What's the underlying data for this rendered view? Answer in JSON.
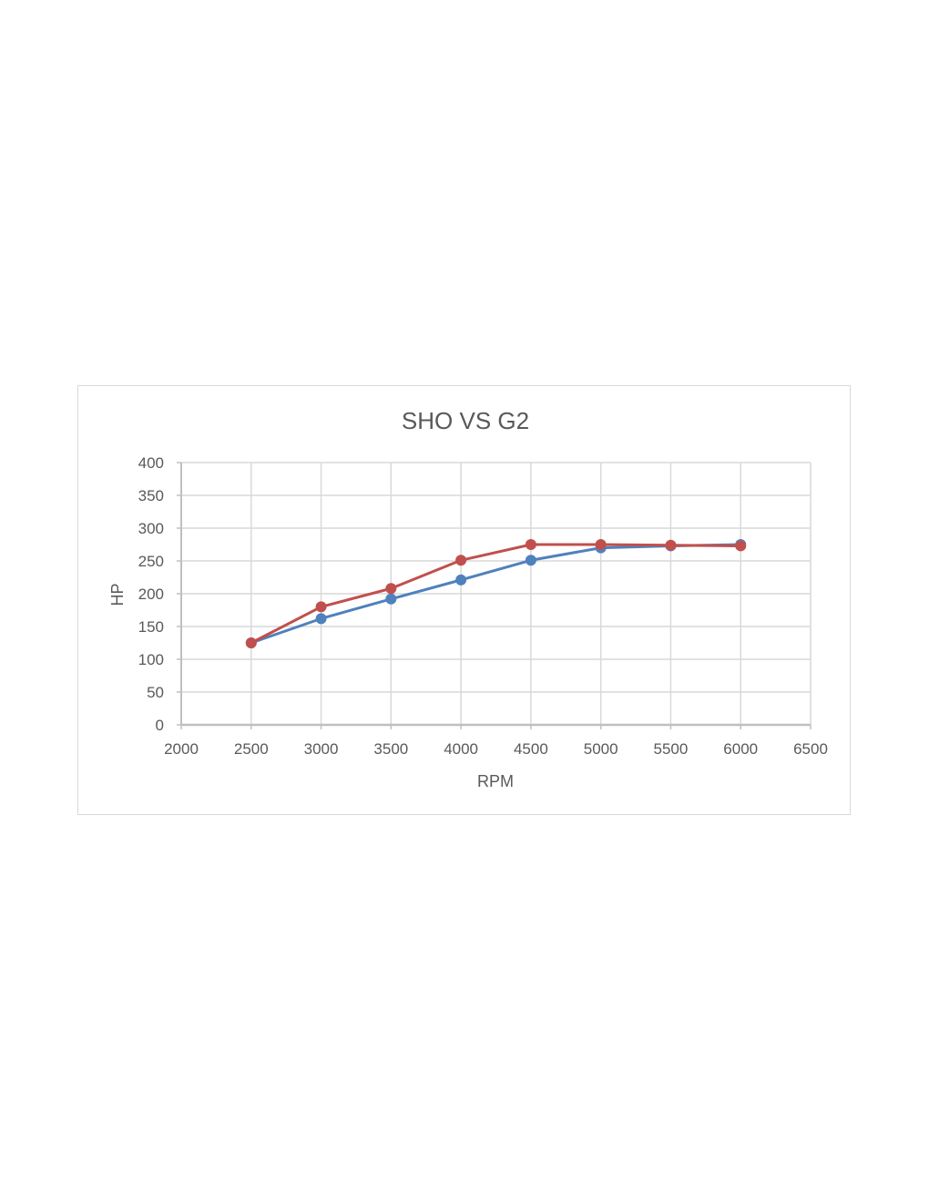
{
  "chart_data": {
    "type": "scatter",
    "title": "SHO VS G2",
    "xlabel": "RPM",
    "ylabel": "HP",
    "xlim": [
      2000,
      6500
    ],
    "ylim": [
      0,
      400
    ],
    "xticks": [
      2000,
      2500,
      3000,
      3500,
      4000,
      4500,
      5000,
      5500,
      6000,
      6500
    ],
    "yticks": [
      0,
      50,
      100,
      150,
      200,
      250,
      300,
      350,
      400
    ],
    "grid": true,
    "legend": "none",
    "series": [
      {
        "color": "#4f81bd",
        "x": [
          2500,
          3000,
          3500,
          4000,
          4500,
          5000,
          5500,
          6000
        ],
        "y": [
          125,
          162,
          192,
          221,
          251,
          270,
          273,
          275
        ]
      },
      {
        "color": "#c0504d",
        "x": [
          2500,
          3000,
          3500,
          4000,
          4500,
          5000,
          5500,
          6000
        ],
        "y": [
          125,
          180,
          208,
          251,
          275,
          275,
          274,
          273
        ]
      }
    ]
  }
}
